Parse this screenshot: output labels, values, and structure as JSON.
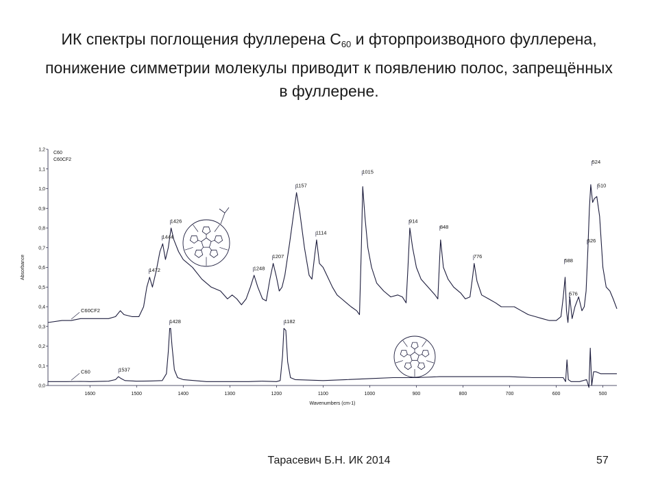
{
  "slide": {
    "title_part1": "ИК спектры поглощения фуллерена С",
    "title_sub": "60",
    "title_part2": " и фторпроизводного фуллерена, понижение симметрии молекулы приводит к появлению полос, запрещённых в фуллерене.",
    "footer": "Тарасевич Б.Н.  ИК 2014",
    "page_number": "57"
  },
  "chart_data": {
    "type": "line",
    "title": "",
    "xlabel": "Wavenumbers (cm-1)",
    "ylabel": "Absorbance",
    "xlim": [
      1690,
      470
    ],
    "ylim": [
      0.0,
      1.2
    ],
    "x_reversed": true,
    "x_ticks": [
      1600,
      1500,
      1400,
      1300,
      1200,
      1100,
      1000,
      900,
      800,
      700,
      600,
      500
    ],
    "y_ticks": [
      "0,0",
      "0,1",
      "0,2",
      "0,3",
      "0,4",
      "0,5",
      "0,6",
      "0,7",
      "0,8",
      "0,9",
      "1,0",
      "1,1",
      "1,2"
    ],
    "y_tick_values": [
      0.0,
      0.1,
      0.2,
      0.3,
      0.4,
      0.5,
      0.6,
      0.7,
      0.8,
      0.9,
      1.0,
      1.1,
      1.2
    ],
    "legend": [
      "C60",
      "C60CF2"
    ],
    "series": [
      {
        "name": "C60",
        "label": "C60",
        "points": [
          [
            1690,
            0.02
          ],
          [
            1650,
            0.02
          ],
          [
            1620,
            0.021
          ],
          [
            1600,
            0.02
          ],
          [
            1560,
            0.022
          ],
          [
            1545,
            0.03
          ],
          [
            1539,
            0.045
          ],
          [
            1533,
            0.035
          ],
          [
            1525,
            0.025
          ],
          [
            1500,
            0.022
          ],
          [
            1470,
            0.023
          ],
          [
            1445,
            0.025
          ],
          [
            1436,
            0.06
          ],
          [
            1432,
            0.17
          ],
          [
            1429,
            0.29
          ],
          [
            1427,
            0.29
          ],
          [
            1424,
            0.2
          ],
          [
            1419,
            0.08
          ],
          [
            1412,
            0.04
          ],
          [
            1400,
            0.03
          ],
          [
            1350,
            0.02
          ],
          [
            1300,
            0.02
          ],
          [
            1260,
            0.02
          ],
          [
            1230,
            0.022
          ],
          [
            1200,
            0.02
          ],
          [
            1192,
            0.025
          ],
          [
            1187,
            0.15
          ],
          [
            1184,
            0.29
          ],
          [
            1180,
            0.28
          ],
          [
            1176,
            0.12
          ],
          [
            1170,
            0.04
          ],
          [
            1160,
            0.03
          ],
          [
            1100,
            0.025
          ],
          [
            1050,
            0.03
          ],
          [
            1000,
            0.035
          ],
          [
            950,
            0.04
          ],
          [
            900,
            0.04
          ],
          [
            850,
            0.045
          ],
          [
            800,
            0.045
          ],
          [
            750,
            0.045
          ],
          [
            700,
            0.045
          ],
          [
            650,
            0.04
          ],
          [
            600,
            0.04
          ],
          [
            585,
            0.04
          ],
          [
            580,
            0.02
          ],
          [
            577,
            0.13
          ],
          [
            574,
            0.03
          ],
          [
            568,
            0.02
          ],
          [
            550,
            0.02
          ],
          [
            535,
            0.03
          ],
          [
            530,
            -0.01
          ],
          [
            527,
            0.19
          ],
          [
            524,
            0.0
          ],
          [
            520,
            0.07
          ],
          [
            515,
            0.07
          ],
          [
            505,
            0.06
          ],
          [
            490,
            0.06
          ],
          [
            470,
            0.06
          ]
        ]
      },
      {
        "name": "C60CF2",
        "label": "C60CF2",
        "points": [
          [
            1690,
            0.32
          ],
          [
            1660,
            0.33
          ],
          [
            1640,
            0.33
          ],
          [
            1620,
            0.34
          ],
          [
            1600,
            0.34
          ],
          [
            1580,
            0.34
          ],
          [
            1560,
            0.34
          ],
          [
            1545,
            0.35
          ],
          [
            1535,
            0.38
          ],
          [
            1527,
            0.36
          ],
          [
            1510,
            0.35
          ],
          [
            1495,
            0.35
          ],
          [
            1485,
            0.4
          ],
          [
            1478,
            0.5
          ],
          [
            1472,
            0.55
          ],
          [
            1466,
            0.5
          ],
          [
            1458,
            0.58
          ],
          [
            1450,
            0.68
          ],
          [
            1444,
            0.72
          ],
          [
            1438,
            0.64
          ],
          [
            1432,
            0.7
          ],
          [
            1426,
            0.8
          ],
          [
            1420,
            0.74
          ],
          [
            1410,
            0.68
          ],
          [
            1400,
            0.64
          ],
          [
            1380,
            0.6
          ],
          [
            1360,
            0.54
          ],
          [
            1340,
            0.5
          ],
          [
            1320,
            0.48
          ],
          [
            1305,
            0.44
          ],
          [
            1295,
            0.46
          ],
          [
            1285,
            0.44
          ],
          [
            1275,
            0.41
          ],
          [
            1265,
            0.44
          ],
          [
            1256,
            0.5
          ],
          [
            1248,
            0.56
          ],
          [
            1240,
            0.5
          ],
          [
            1230,
            0.44
          ],
          [
            1222,
            0.43
          ],
          [
            1214,
            0.54
          ],
          [
            1207,
            0.62
          ],
          [
            1200,
            0.55
          ],
          [
            1194,
            0.48
          ],
          [
            1188,
            0.5
          ],
          [
            1182,
            0.56
          ],
          [
            1172,
            0.72
          ],
          [
            1164,
            0.86
          ],
          [
            1157,
            0.98
          ],
          [
            1150,
            0.88
          ],
          [
            1140,
            0.7
          ],
          [
            1130,
            0.56
          ],
          [
            1124,
            0.54
          ],
          [
            1118,
            0.66
          ],
          [
            1114,
            0.74
          ],
          [
            1108,
            0.62
          ],
          [
            1100,
            0.6
          ],
          [
            1090,
            0.55
          ],
          [
            1080,
            0.5
          ],
          [
            1070,
            0.46
          ],
          [
            1060,
            0.44
          ],
          [
            1050,
            0.42
          ],
          [
            1040,
            0.4
          ],
          [
            1028,
            0.38
          ],
          [
            1022,
            0.36
          ],
          [
            1018,
            0.7
          ],
          [
            1015,
            1.01
          ],
          [
            1010,
            0.85
          ],
          [
            1004,
            0.7
          ],
          [
            996,
            0.6
          ],
          [
            985,
            0.52
          ],
          [
            970,
            0.48
          ],
          [
            955,
            0.45
          ],
          [
            940,
            0.46
          ],
          [
            930,
            0.45
          ],
          [
            922,
            0.42
          ],
          [
            918,
            0.6
          ],
          [
            914,
            0.8
          ],
          [
            908,
            0.7
          ],
          [
            900,
            0.6
          ],
          [
            890,
            0.54
          ],
          [
            875,
            0.5
          ],
          [
            860,
            0.46
          ],
          [
            854,
            0.44
          ],
          [
            850,
            0.65
          ],
          [
            848,
            0.74
          ],
          [
            842,
            0.6
          ],
          [
            832,
            0.54
          ],
          [
            820,
            0.5
          ],
          [
            805,
            0.47
          ],
          [
            795,
            0.44
          ],
          [
            785,
            0.45
          ],
          [
            779,
            0.56
          ],
          [
            776,
            0.62
          ],
          [
            770,
            0.53
          ],
          [
            760,
            0.46
          ],
          [
            745,
            0.44
          ],
          [
            730,
            0.42
          ],
          [
            718,
            0.4
          ],
          [
            705,
            0.4
          ],
          [
            690,
            0.4
          ],
          [
            675,
            0.38
          ],
          [
            660,
            0.36
          ],
          [
            645,
            0.35
          ],
          [
            630,
            0.34
          ],
          [
            615,
            0.33
          ],
          [
            600,
            0.33
          ],
          [
            590,
            0.35
          ],
          [
            585,
            0.45
          ],
          [
            581,
            0.55
          ],
          [
            578,
            0.38
          ],
          [
            575,
            0.32
          ],
          [
            571,
            0.45
          ],
          [
            566,
            0.34
          ],
          [
            560,
            0.4
          ],
          [
            552,
            0.45
          ],
          [
            545,
            0.38
          ],
          [
            540,
            0.4
          ],
          [
            536,
            0.48
          ],
          [
            532,
            0.7
          ],
          [
            529,
            0.9
          ],
          [
            526,
            1.02
          ],
          [
            522,
            0.93
          ],
          [
            518,
            0.95
          ],
          [
            513,
            0.96
          ],
          [
            507,
            0.86
          ],
          [
            500,
            0.6
          ],
          [
            493,
            0.5
          ],
          [
            485,
            0.48
          ],
          [
            478,
            0.44
          ],
          [
            470,
            0.39
          ]
        ]
      }
    ],
    "annotations": [
      {
        "text": "1537",
        "x": 1537,
        "y": 0.065
      },
      {
        "text": "1428",
        "x": 1428,
        "y": 0.31
      },
      {
        "text": "1182",
        "x": 1182,
        "y": 0.31
      },
      {
        "text": "1472",
        "x": 1472,
        "y": 0.57
      },
      {
        "text": "1444",
        "x": 1444,
        "y": 0.74
      },
      {
        "text": "1426",
        "x": 1426,
        "y": 0.82
      },
      {
        "text": "1248",
        "x": 1248,
        "y": 0.58
      },
      {
        "text": "1207",
        "x": 1207,
        "y": 0.64
      },
      {
        "text": "1157",
        "x": 1157,
        "y": 1.0
      },
      {
        "text": "1114",
        "x": 1114,
        "y": 0.76
      },
      {
        "text": "1015",
        "x": 1015,
        "y": 1.07
      },
      {
        "text": "914",
        "x": 914,
        "y": 0.82
      },
      {
        "text": "848",
        "x": 848,
        "y": 0.79
      },
      {
        "text": "776",
        "x": 776,
        "y": 0.64
      },
      {
        "text": "588",
        "x": 581,
        "y": 0.62
      },
      {
        "text": "576",
        "x": 571,
        "y": 0.45
      },
      {
        "text": "526",
        "x": 532,
        "y": 0.72
      },
      {
        "text": "524",
        "x": 522,
        "y": 1.12
      },
      {
        "text": "510",
        "x": 510,
        "y": 1.0
      }
    ],
    "line_color": "#1c1c3c",
    "grid": false
  }
}
